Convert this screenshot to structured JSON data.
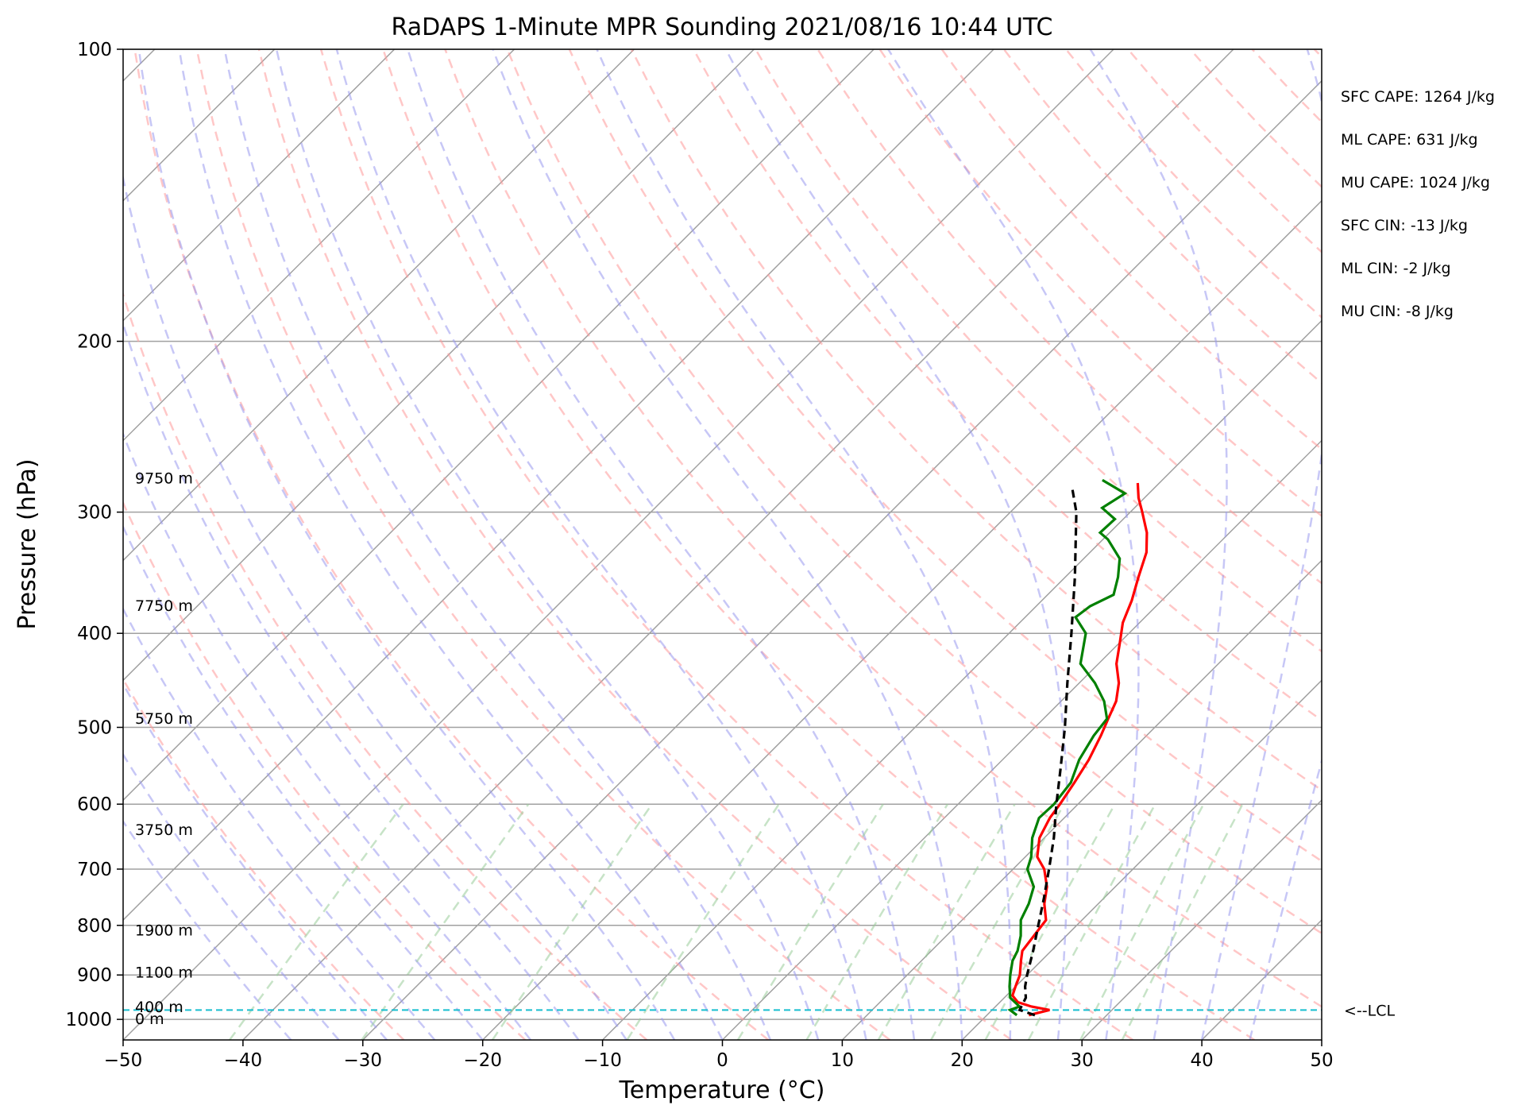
{
  "chart_data": {
    "type": "line",
    "chart_kind": "skew-t log-p sounding diagram",
    "title": "RaDAPS 1-Minute MPR Sounding 2021/08/16 10:44 UTC",
    "xlabel": "Temperature (°C)",
    "ylabel": "Pressure (hPa)",
    "xlim": [
      -50,
      50
    ],
    "ylim": [
      1050,
      100
    ],
    "yscale": "log",
    "x_ticks": [
      -50,
      -40,
      -30,
      -20,
      -10,
      0,
      10,
      20,
      30,
      40,
      50
    ],
    "x_tick_labels": [
      "−50",
      "−40",
      "−30",
      "−20",
      "−10",
      "0",
      "10",
      "20",
      "30",
      "40",
      "50"
    ],
    "y_ticks": [
      1000,
      900,
      800,
      700,
      600,
      500,
      400,
      300,
      200,
      100
    ],
    "y_tick_labels": [
      "1000",
      "900",
      "800",
      "700",
      "600",
      "500",
      "400",
      "300",
      "200",
      "100"
    ],
    "grid": true,
    "height_labels": [
      {
        "pressure": 1000,
        "text": "0 m"
      },
      {
        "pressure": 972,
        "text": "400 m"
      },
      {
        "pressure": 895,
        "text": "1100 m"
      },
      {
        "pressure": 810,
        "text": "1900 m"
      },
      {
        "pressure": 638,
        "text": "3750 m"
      },
      {
        "pressure": 490,
        "text": "5750 m"
      },
      {
        "pressure": 375,
        "text": "7750 m"
      },
      {
        "pressure": 277,
        "text": "9750 m"
      }
    ],
    "indices": [
      "SFC CAPE: 1264 J/kg",
      "ML CAPE: 631 J/kg",
      "MU CAPE: 1024 J/kg",
      "SFC CIN: -13 J/kg",
      "ML CIN: -2 J/kg",
      "MU CIN: -8 J/kg"
    ],
    "lcl": {
      "pressure": 978,
      "label": "<--LCL"
    },
    "colors": {
      "temperature": "#ff0000",
      "dewpoint": "#008000",
      "parcel": "#000000",
      "lcl": "#17becf",
      "dry_adiabat": "#ff9999",
      "moist_adiabat": "#9999ee",
      "mixing_ratio": "#99cc99",
      "isotherm": "#a0a0a0"
    },
    "series": [
      {
        "name": "temperature",
        "points": [
          [
            990,
            23.5
          ],
          [
            978,
            24.8
          ],
          [
            970,
            23.0
          ],
          [
            960,
            21.5
          ],
          [
            945,
            20.5
          ],
          [
            925,
            20.0
          ],
          [
            900,
            19.4
          ],
          [
            870,
            18.3
          ],
          [
            850,
            17.6
          ],
          [
            820,
            17.3
          ],
          [
            790,
            17.0
          ],
          [
            760,
            15.5
          ],
          [
            730,
            14.3
          ],
          [
            700,
            12.6
          ],
          [
            680,
            11.0
          ],
          [
            650,
            9.6
          ],
          [
            620,
            8.8
          ],
          [
            600,
            8.5
          ],
          [
            570,
            7.9
          ],
          [
            540,
            7.2
          ],
          [
            510,
            6.2
          ],
          [
            490,
            5.4
          ],
          [
            470,
            4.6
          ],
          [
            450,
            3.3
          ],
          [
            430,
            1.5
          ],
          [
            410,
            0.1
          ],
          [
            390,
            -1.4
          ],
          [
            370,
            -2.5
          ],
          [
            350,
            -3.9
          ],
          [
            330,
            -5.3
          ],
          [
            315,
            -6.9
          ],
          [
            300,
            -9.0
          ],
          [
            290,
            -10.5
          ],
          [
            280,
            -11.8
          ]
        ]
      },
      {
        "name": "dewpoint",
        "points": [
          [
            990,
            22.5
          ],
          [
            978,
            21.5
          ],
          [
            970,
            22.0
          ],
          [
            950,
            20.5
          ],
          [
            925,
            19.5
          ],
          [
            900,
            18.6
          ],
          [
            870,
            17.6
          ],
          [
            850,
            17.2
          ],
          [
            820,
            16.2
          ],
          [
            790,
            14.9
          ],
          [
            760,
            14.2
          ],
          [
            730,
            13.2
          ],
          [
            700,
            11.2
          ],
          [
            680,
            10.5
          ],
          [
            650,
            9.0
          ],
          [
            620,
            7.9
          ],
          [
            600,
            8.0
          ],
          [
            570,
            7.6
          ],
          [
            540,
            6.4
          ],
          [
            510,
            5.6
          ],
          [
            490,
            5.3
          ],
          [
            470,
            3.6
          ],
          [
            450,
            1.3
          ],
          [
            430,
            -1.5
          ],
          [
            400,
            -3.6
          ],
          [
            385,
            -5.8
          ],
          [
            375,
            -5.5
          ],
          [
            365,
            -4.5
          ],
          [
            350,
            -5.6
          ],
          [
            335,
            -7.0
          ],
          [
            320,
            -9.6
          ],
          [
            315,
            -10.8
          ],
          [
            305,
            -10.7
          ],
          [
            297,
            -12.7
          ],
          [
            287,
            -12.0
          ],
          [
            278,
            -15.0
          ]
        ]
      },
      {
        "name": "parcel",
        "points": [
          [
            990,
            24.0
          ],
          [
            978,
            22.3
          ],
          [
            950,
            21.8
          ],
          [
            925,
            20.8
          ],
          [
            900,
            20.0
          ],
          [
            850,
            18.5
          ],
          [
            800,
            16.8
          ],
          [
            750,
            15.0
          ],
          [
            700,
            13.0
          ],
          [
            650,
            10.8
          ],
          [
            600,
            8.2
          ],
          [
            550,
            5.5
          ],
          [
            500,
            2.5
          ],
          [
            450,
            -1.0
          ],
          [
            400,
            -4.8
          ],
          [
            350,
            -9.2
          ],
          [
            300,
            -14.5
          ],
          [
            283,
            -16.9
          ]
        ]
      }
    ]
  }
}
